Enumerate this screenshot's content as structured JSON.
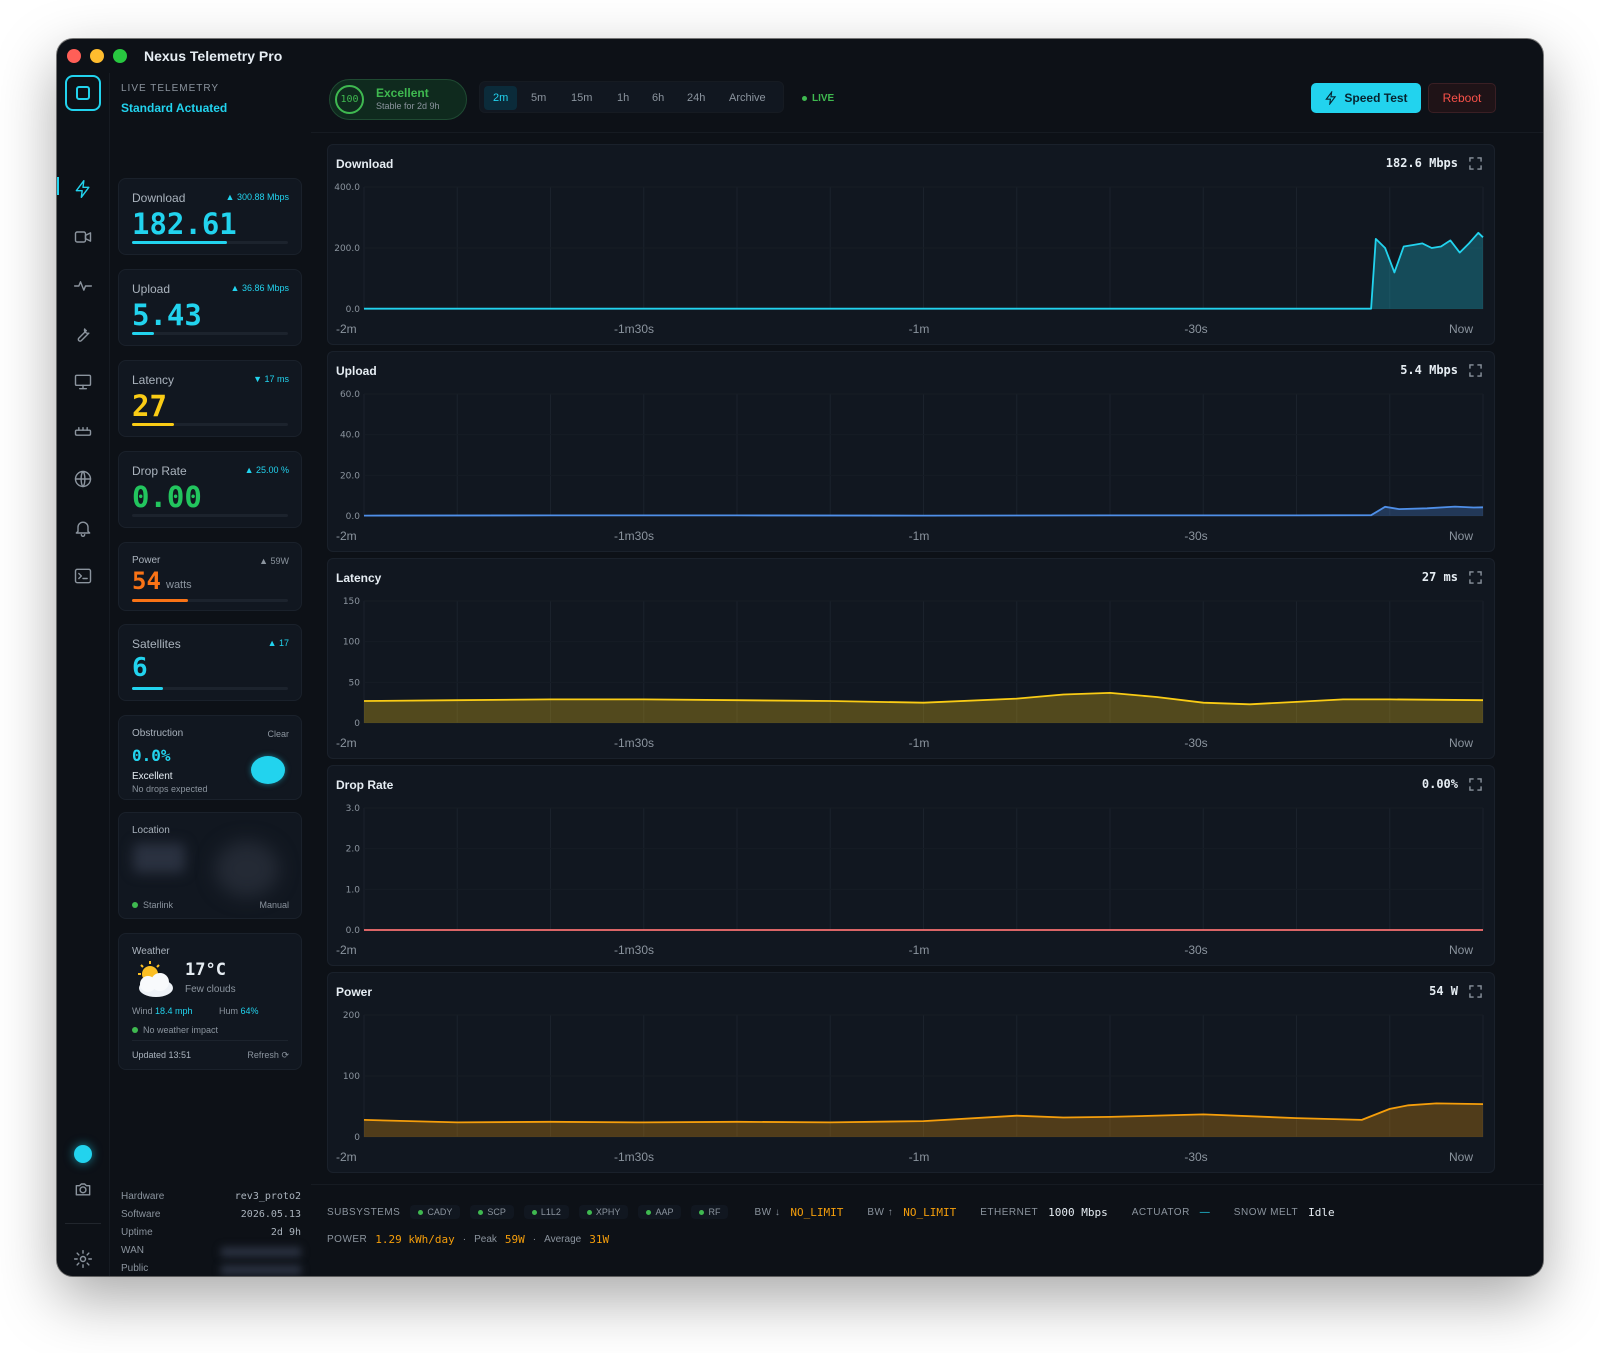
{
  "app": {
    "title": "Nexus Telemetry Pro"
  },
  "sidebar": {
    "subtitle": "LIVE TELEMETRY",
    "mode": "Standard Actuated"
  },
  "rail": {
    "icons": [
      "bolt-icon",
      "video-icon",
      "pulse-icon",
      "wrench-icon",
      "monitor-icon",
      "router-icon",
      "globe-icon",
      "bell-icon",
      "terminal-icon"
    ],
    "bottom_icons": [
      "status-dot-icon",
      "camera-icon",
      "gear-icon"
    ]
  },
  "metrics": {
    "download": {
      "label": "Download",
      "delta": "▲ 300.88 Mbps",
      "value": "182.61",
      "color": "#22d3ee",
      "level": 0.61
    },
    "upload": {
      "label": "Upload",
      "delta": "▲ 36.86 Mbps",
      "value": "5.43",
      "color": "#22d3ee",
      "level": 0.14
    },
    "latency": {
      "label": "Latency",
      "delta": "▼ 17 ms",
      "value": "27",
      "color": "#facc15",
      "level": 0.27
    },
    "drop_rate": {
      "label": "Drop Rate",
      "delta": "▲ 25.00 %",
      "value": "0.00",
      "color": "#22c55e",
      "level": 0
    },
    "power": {
      "label": "Power",
      "delta": "▲ 59W",
      "value": "54",
      "unit": "watts",
      "color": "#f97316",
      "level": 0.36
    },
    "satellites": {
      "label": "Satellites",
      "delta": "▲ 17",
      "value": "6",
      "color": "#22d3ee",
      "level": 0.2
    }
  },
  "obstruction": {
    "label": "Obstruction",
    "status_right": "Clear",
    "value": "0.0%",
    "quality": "Excellent",
    "note": "No drops expected"
  },
  "location": {
    "label": "Location",
    "source": "Starlink",
    "mode": "Manual"
  },
  "weather": {
    "label": "Weather",
    "temp": "17°C",
    "desc": "Few clouds",
    "wind_label": "Wind",
    "wind": "18.4 mph",
    "hum_label": "Hum",
    "hum": "64%",
    "impact": "No weather impact",
    "updated": "Updated 13:51",
    "refresh": "Refresh"
  },
  "hardware": [
    {
      "label": "Hardware",
      "value": "rev3_proto2"
    },
    {
      "label": "Software",
      "value": "2026.05.13"
    },
    {
      "label": "Uptime",
      "value": "2d 9h"
    },
    {
      "label": "WAN",
      "value": ""
    },
    {
      "label": "Public",
      "value": ""
    }
  ],
  "topbar": {
    "score": "100",
    "status": "Excellent",
    "status_sub": "Stable for 2d 9h",
    "ranges": [
      "2m",
      "5m",
      "15m",
      "1h",
      "6h",
      "24h",
      "Archive"
    ],
    "active_range": "2m",
    "live": "LIVE",
    "speed_test": "Speed Test",
    "reboot": "Reboot"
  },
  "x_labels": [
    "-2m",
    "-1m30s",
    "-1m",
    "-30s",
    "Now"
  ],
  "chart_data": [
    {
      "type": "area",
      "title": "Download",
      "current": "182.6 Mbps",
      "y_ticks": [
        "400.0",
        "200.0",
        "0.0"
      ],
      "ylim": [
        0,
        400
      ],
      "color": "#22d3ee",
      "x": [
        -120,
        -100,
        -80,
        -60,
        -40,
        -20,
        -12,
        -11.5,
        -10.5,
        -9.5,
        -8.5,
        -7.5,
        -6.5,
        -5.5,
        -4.5,
        -3.5,
        -2.5,
        -1.5,
        -0.5,
        0
      ],
      "values": [
        1,
        1,
        1,
        1,
        1,
        1,
        1,
        230,
        200,
        120,
        205,
        210,
        215,
        200,
        205,
        225,
        185,
        215,
        250,
        235
      ]
    },
    {
      "type": "area",
      "title": "Upload",
      "current": "5.4 Mbps",
      "y_ticks": [
        "60.0",
        "40.0",
        "20.0",
        "0.0"
      ],
      "ylim": [
        0,
        60
      ],
      "color": "#4f8fe8",
      "x": [
        -120,
        -100,
        -80,
        -60,
        -40,
        -20,
        -12,
        -10.5,
        -9,
        -6,
        -3,
        -1,
        0
      ],
      "values": [
        0.2,
        0.3,
        0.3,
        0.2,
        0.3,
        0.3,
        0.4,
        4.5,
        3.4,
        3.8,
        4.6,
        4.2,
        4.3
      ]
    },
    {
      "type": "area",
      "title": "Latency",
      "current": "27 ms",
      "y_ticks": [
        "150",
        "100",
        "50",
        "0"
      ],
      "ylim": [
        0,
        150
      ],
      "color": "#facc15",
      "x": [
        -120,
        -110,
        -100,
        -90,
        -80,
        -70,
        -60,
        -50,
        -45,
        -40,
        -35,
        -30,
        -25,
        -20,
        -15,
        -10,
        0
      ],
      "values": [
        27,
        28,
        29,
        29,
        28,
        27,
        25,
        30,
        35,
        37,
        32,
        25,
        23,
        26,
        29,
        29,
        28
      ]
    },
    {
      "type": "line",
      "title": "Drop Rate",
      "current": "0.00%",
      "y_ticks": [
        "3.0",
        "2.0",
        "1.0",
        "0.0"
      ],
      "ylim": [
        0,
        3
      ],
      "color": "#f87171",
      "x": [
        -120,
        0
      ],
      "values": [
        0,
        0
      ]
    },
    {
      "type": "area",
      "title": "Power",
      "current": "54 W",
      "y_ticks": [
        "200",
        "100",
        "0"
      ],
      "ylim": [
        0,
        200
      ],
      "color": "#f59e0b",
      "x": [
        -120,
        -110,
        -100,
        -90,
        -80,
        -70,
        -60,
        -50,
        -45,
        -40,
        -30,
        -20,
        -13,
        -10,
        -8,
        -5,
        0
      ],
      "values": [
        28,
        24,
        25,
        24,
        25,
        24,
        26,
        35,
        32,
        33,
        37,
        31,
        28,
        46,
        52,
        55,
        54
      ]
    }
  ],
  "footer": {
    "subsystems_label": "SUBSYSTEMS",
    "subsystems": [
      "CADY",
      "SCP",
      "L1L2",
      "XPHY",
      "AAP",
      "RF"
    ],
    "bw_down_label": "BW ↓",
    "bw_down": "NO_LIMIT",
    "bw_up_label": "BW ↑",
    "bw_up": "NO_LIMIT",
    "ethernet_label": "ETHERNET",
    "ethernet": "1000 Mbps",
    "actuator_label": "ACTUATOR",
    "actuator": "—",
    "snow_label": "SNOW MELT",
    "snow": "Idle",
    "power_label": "POWER",
    "power_day": "1.29 kWh/day",
    "peak_label": "Peak",
    "peak": "59W",
    "avg_label": "Average",
    "avg": "31W"
  }
}
